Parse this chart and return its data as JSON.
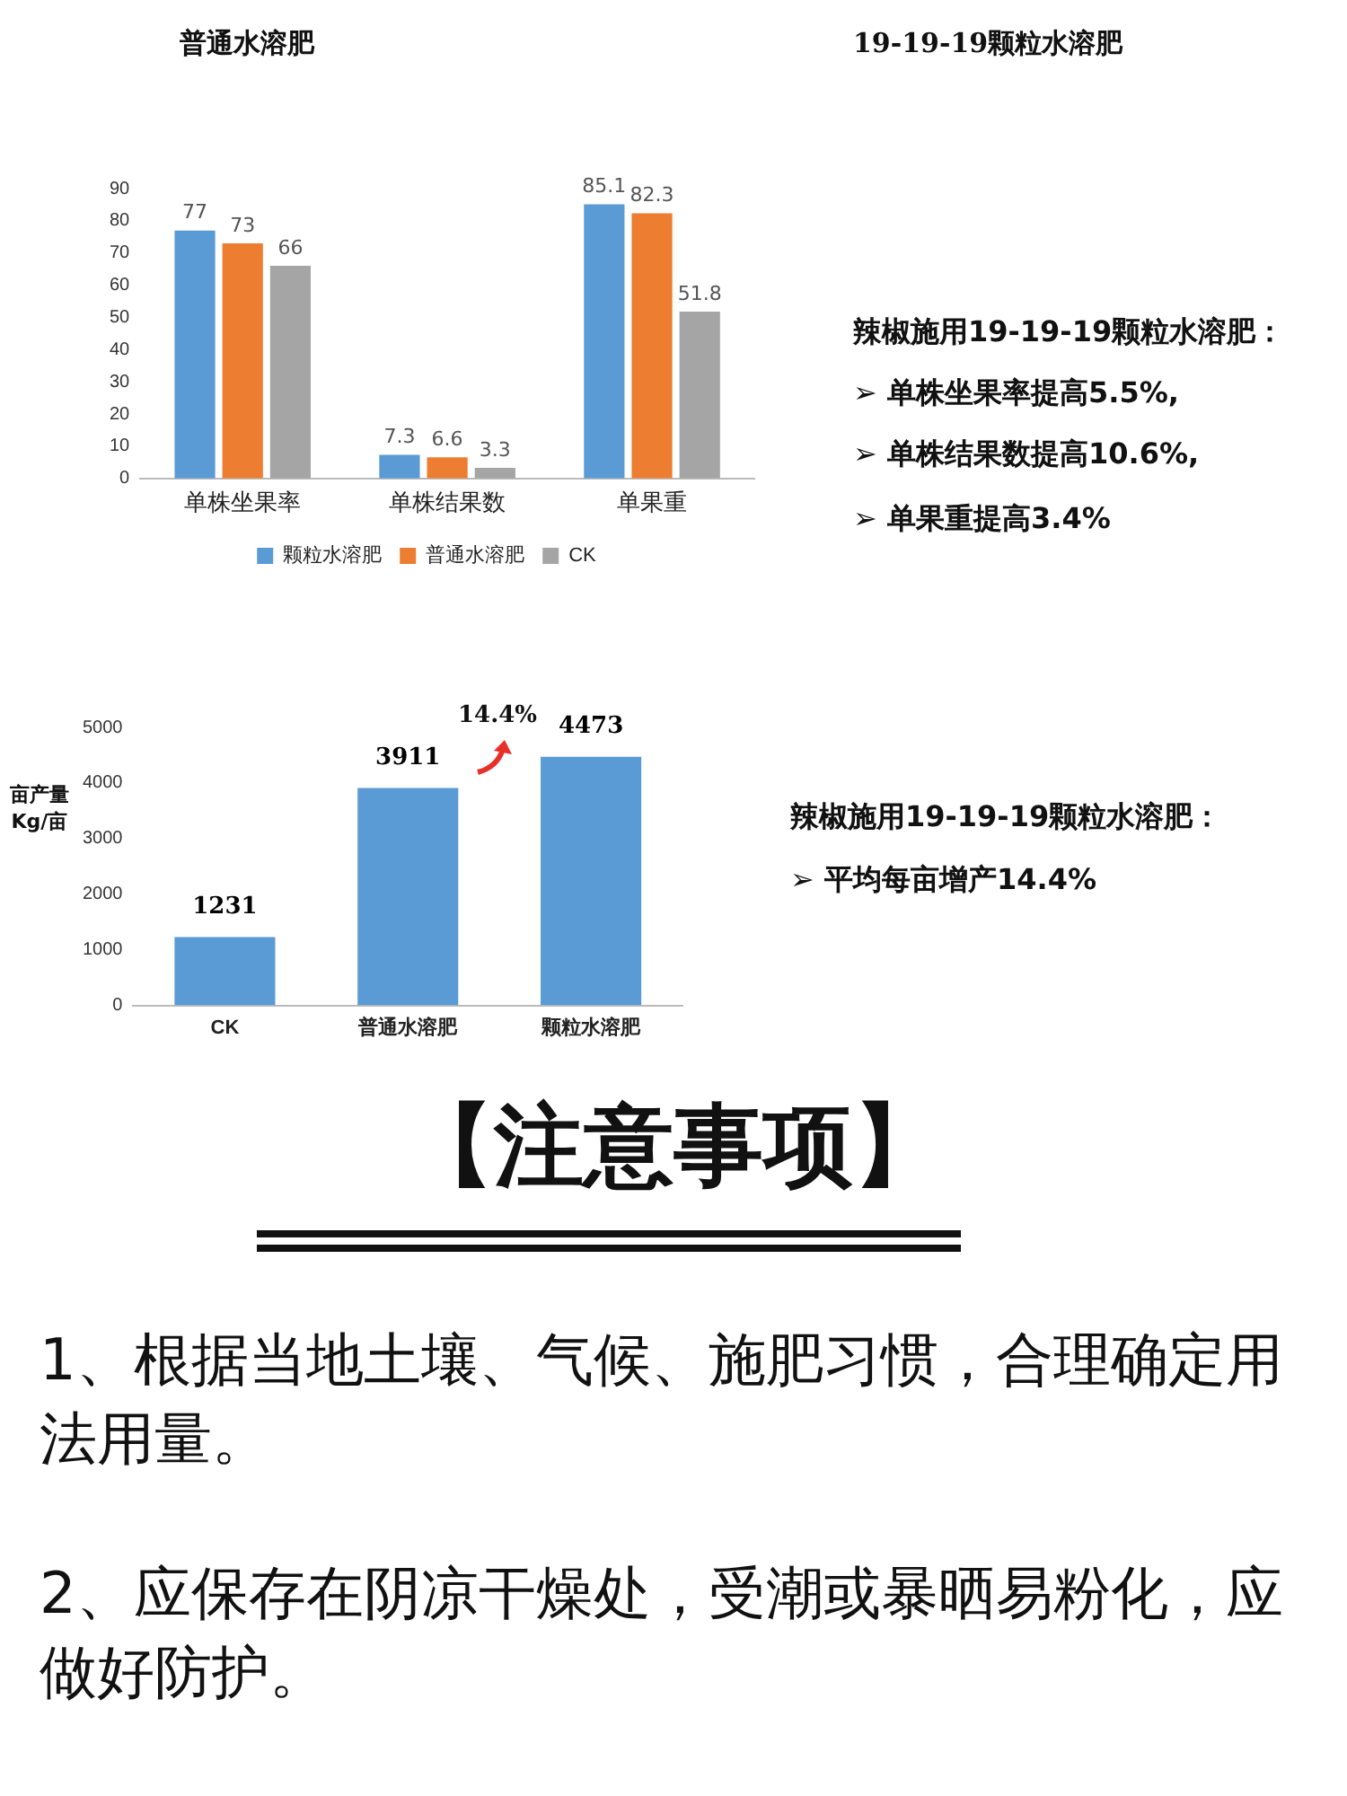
{
  "chart_data": [
    {
      "type": "bar",
      "categories": [
        "单株坐果率",
        "单株结果数",
        "单果重"
      ],
      "series": [
        {
          "name": "颗粒水溶肥",
          "color": "#5b9bd5",
          "values": [
            77,
            7.3,
            85.1
          ]
        },
        {
          "name": "普通水溶肥",
          "color": "#ed7d31",
          "values": [
            73,
            6.6,
            82.3
          ]
        },
        {
          "name": "CK",
          "color": "#a5a5a5",
          "values": [
            66,
            3.3,
            51.8
          ]
        }
      ],
      "ylim": [
        0,
        90
      ],
      "yticks": [
        0,
        10,
        20,
        30,
        40,
        50,
        60,
        70,
        80,
        90
      ],
      "grid": false,
      "legend": "bottom",
      "data_labels": true,
      "annotations": [
        "普通水溶肥",
        "19-19-19颗粒水溶肥",
        "辣椒施用19-19-19颗粒水溶肥：",
        "➢ 单株坐果率提高5.5%,",
        "➢ 单株结果数提高10.6%,",
        "➢ 单果重提高3.4%"
      ]
    },
    {
      "type": "bar",
      "categories": [
        "CK",
        "普通水溶肥",
        "颗粒水溶肥"
      ],
      "values": [
        1231,
        3911,
        4473
      ],
      "color": "#5b9bd5",
      "ylim": [
        0,
        5000
      ],
      "yticks": [
        0,
        1000,
        2000,
        3000,
        4000,
        5000
      ],
      "ylabel": "亩产量 Kg/亩",
      "grid": false,
      "data_labels": true,
      "annotations": [
        "14.4%",
        "辣椒施用19-19-19颗粒水溶肥：",
        "➢ 平均每亩增产14.4%",
        "【注意事项】",
        "1、根据当地土壤、气候、施肥习惯，合理确定用法用量。",
        "2、应保存在阴凉干燥处，受潮或暴晒易粉化，应做好防护。"
      ]
    }
  ]
}
